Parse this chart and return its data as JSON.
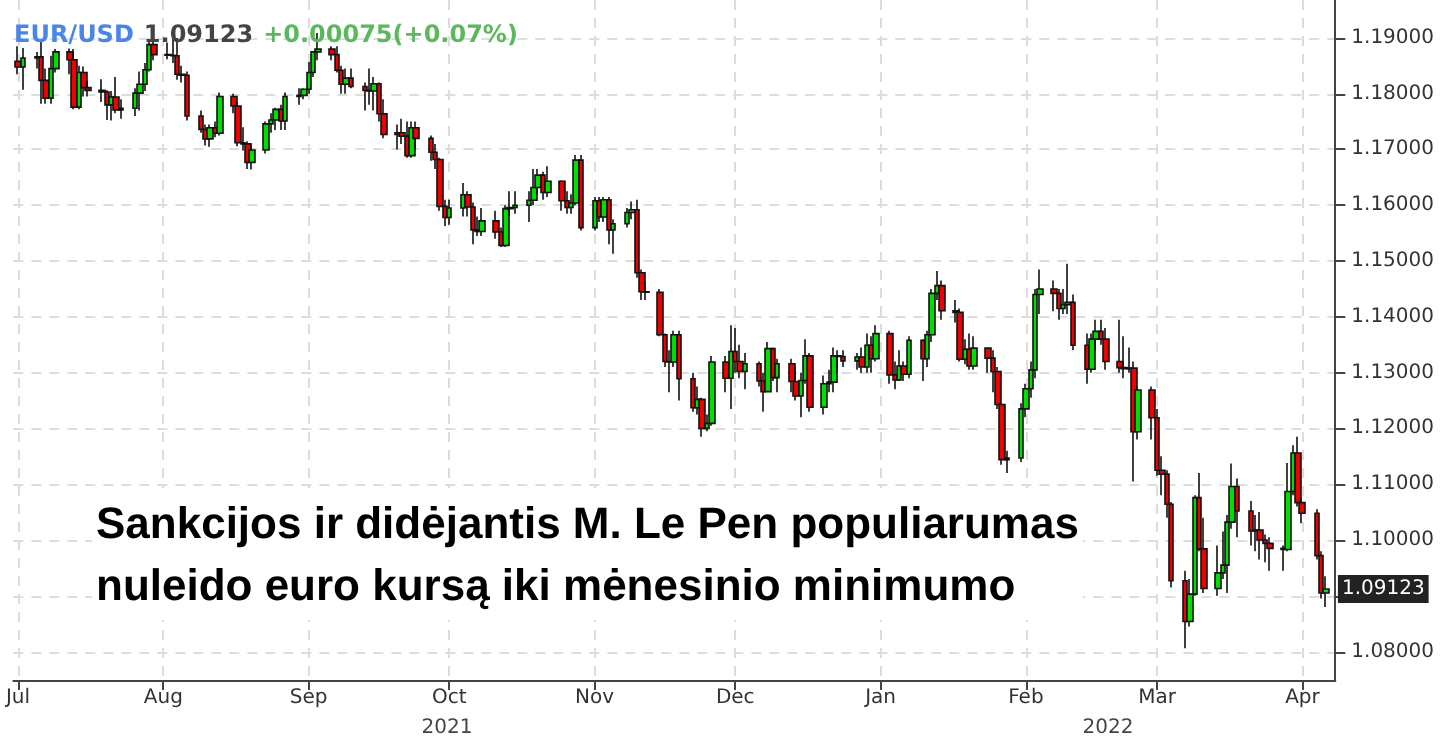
{
  "chart_data": {
    "type": "candlestick",
    "title": "EUR/USD",
    "subtitle": "1.09123",
    "annotations": [
      "+0.00075(+0.07%)",
      "Sankcijos ir didėjantis M. Le Pen populiarumas\nnuleido euro kursą iki mėnesinio minimumo",
      "2021",
      "2022",
      {
        "text": "1.09123",
        "x": "2022-04-06",
        "y": 1.09123
      }
    ],
    "colors": [
      "#ee0000",
      "#00dd00",
      "#00dd00",
      "#ee0000",
      "#ee0000",
      "#00dd00",
      "#00dd00",
      "#ee0000",
      "#ee0000",
      "#00dd00",
      "#ee0000",
      "#ee0000",
      "#ee0000",
      "#ee0000",
      "#00dd00",
      "#ee0000",
      "#00dd00",
      "#00dd00",
      "#00dd00",
      "#00dd00",
      "#00dd00",
      "#ee0000",
      "#ee0000",
      "#ee0000",
      "#ee0000",
      "#ee0000",
      "#ee0000",
      "#ee0000",
      "#ee0000",
      "#00dd00",
      "#ee0000",
      "#00dd00",
      "#ee0000",
      "#ee0000",
      "#ee0000",
      "#ee0000",
      "#00dd00",
      "#00dd00",
      "#00dd00",
      "#00dd00",
      "#ee0000",
      "#00dd00",
      "#00dd00",
      "#00dd00",
      "#00dd00",
      "#00dd00",
      "#00dd00",
      "#ee0000",
      "#ee0000",
      "#ee0000",
      "#00dd00",
      "#ee0000",
      "#ee0000",
      "#ee0000",
      "#00dd00",
      "#ee0000",
      "#ee0000",
      "#00dd00",
      "#ee0000",
      "#ee0000",
      "#00dd00",
      "#ee0000",
      "#ee0000",
      "#ee0000",
      "#ee0000",
      "#ee0000",
      "#00dd00",
      "#00dd00",
      "#ee0000",
      "#ee0000",
      "#ee0000",
      "#00dd00",
      "#ee0000",
      "#ee0000",
      "#00dd00",
      "#00dd00",
      "#00dd00",
      "#00dd00",
      "#00dd00",
      "#00dd00",
      "#ee0000",
      "#00dd00",
      "#ee0000",
      "#ee0000",
      "#00dd00",
      "#00dd00",
      "#ee0000",
      "#00dd00",
      "#ee0000",
      "#00dd00",
      "#ee0000",
      "#00dd00",
      "#00dd00",
      "#00dd00",
      "#ee0000",
      "#ee0000",
      "#ee0000",
      "#ee0000",
      "#ee0000",
      "#ee0000",
      "#00dd00",
      "#ee0000",
      "#ee0000",
      "#00dd00",
      "#ee0000",
      "#00dd00",
      "#00dd00",
      "#ee0000",
      "#00dd00",
      "#ee0000",
      "#ee0000",
      "#00dd00",
      "#ee0000",
      "#ee0000",
      "#00dd00",
      "#ee0000",
      "#00dd00",
      "#ee0000",
      "#ee0000",
      "#00dd00",
      "#00dd00",
      "#ee0000",
      "#00dd00",
      "#00dd00",
      "#00dd00",
      "#ee0000",
      "#ee0000",
      "#00dd00",
      "#ee0000",
      "#00dd00",
      "#ee0000",
      "#00dd00",
      "#ee0000",
      "#ee0000",
      "#00dd00",
      "#ee0000",
      "#00dd00",
      "#ee0000",
      "#00dd00",
      "#00dd00",
      "#00dd00",
      "#ee0000",
      "#ee0000",
      "#ee0000",
      "#00dd00",
      "#ee0000",
      "#00dd00",
      "#ee0000",
      "#ee0000",
      "#ee0000",
      "#ee0000",
      "#00dd00",
      "#00dd00",
      "#00dd00",
      "#00dd00",
      "#00dd00",
      "#00dd00",
      "#ee0000",
      "#ee0000",
      "#00dd00",
      "#00dd00",
      "#ee0000",
      "#ee0000",
      "#00dd00",
      "#00dd00",
      "#ee0000",
      "#ee0000",
      "#ee0000",
      "#ee0000",
      "#00dd00",
      "#ee0000",
      "#00dd00",
      "#ee0000",
      "#ee0000",
      "#ee0000",
      "#ee0000",
      "#ee0000",
      "#ee0000",
      "#00dd00",
      "#00dd00",
      "#ee0000",
      "#ee0000",
      "#00dd00",
      "#00dd00",
      "#00dd00",
      "#00dd00",
      "#ee0000",
      "#ee0000",
      "#00dd00",
      "#ee0000",
      "#ee0000",
      "#ee0000",
      "#ee0000",
      "#00dd00",
      "#00dd00",
      "#ee0000",
      "#ee0000",
      "#ee0000",
      "#ee0000",
      "#00dd00"
    ],
    "grid": true,
    "xlim": [
      "2021-06-30",
      "2022-04-08"
    ],
    "xticks": [
      {
        "value": "2021-07-01",
        "label": "Jul"
      },
      {
        "value": "2021-08-01",
        "label": "Aug"
      },
      {
        "value": "2021-09-01",
        "label": "Sep"
      },
      {
        "value": "2021-10-01",
        "label": "Oct"
      },
      {
        "value": "2021-11-01",
        "label": "Nov"
      },
      {
        "value": "2021-12-01",
        "label": "Dec"
      },
      {
        "value": "2022-01-01",
        "label": "Jan"
      },
      {
        "value": "2022-02-01",
        "label": "Feb"
      },
      {
        "value": "2022-03-01",
        "label": "Mar"
      },
      {
        "value": "2022-04-01",
        "label": "Apr"
      }
    ],
    "ylim": [
      1.0749,
      1.1968
    ],
    "yticks": [
      {
        "value": 1.08,
        "label": "1.08000"
      },
      {
        "value": 1.09,
        "label": null
      },
      {
        "value": 1.1,
        "label": "1.10000"
      },
      {
        "value": 1.11,
        "label": "1.11000"
      },
      {
        "value": 1.12,
        "label": "1.12000"
      },
      {
        "value": 1.13,
        "label": "1.13000"
      },
      {
        "value": 1.14,
        "label": "1.14000"
      },
      {
        "value": 1.15,
        "label": "1.15000"
      },
      {
        "value": 1.16,
        "label": "1.16000"
      },
      {
        "value": 1.17,
        "label": "1.17000"
      },
      {
        "value": 1.18,
        "label": "1.18000"
      },
      {
        "value": 1.19,
        "label": "1.19000"
      }
    ],
    "x": [
      "2021-07-01",
      "2021-07-02",
      "2021-07-05",
      "2021-07-06",
      "2021-07-07",
      "2021-07-08",
      "2021-07-09",
      "2021-07-12",
      "2021-07-13",
      "2021-07-14",
      "2021-07-15",
      "2021-07-16",
      "2021-07-19",
      "2021-07-20",
      "2021-07-21",
      "2021-07-22",
      "2021-07-23",
      "2021-07-26",
      "2021-07-27",
      "2021-07-28",
      "2021-07-29",
      "2021-07-30",
      "2021-08-02",
      "2021-08-03",
      "2021-08-04",
      "2021-08-05",
      "2021-08-06",
      "2021-08-09",
      "2021-08-10",
      "2021-08-11",
      "2021-08-12",
      "2021-08-13",
      "2021-08-16",
      "2021-08-17",
      "2021-08-18",
      "2021-08-19",
      "2021-08-20",
      "2021-08-23",
      "2021-08-24",
      "2021-08-25",
      "2021-08-26",
      "2021-08-27",
      "2021-08-30",
      "2021-08-31",
      "2021-09-01",
      "2021-09-02",
      "2021-09-03",
      "2021-09-06",
      "2021-09-07",
      "2021-09-08",
      "2021-09-09",
      "2021-09-10",
      "2021-09-13",
      "2021-09-14",
      "2021-09-15",
      "2021-09-16",
      "2021-09-17",
      "2021-09-20",
      "2021-09-21",
      "2021-09-22",
      "2021-09-23",
      "2021-09-24",
      "2021-09-27",
      "2021-09-28",
      "2021-09-29",
      "2021-09-30",
      "2021-10-01",
      "2021-10-04",
      "2021-10-05",
      "2021-10-06",
      "2021-10-07",
      "2021-10-08",
      "2021-10-11",
      "2021-10-12",
      "2021-10-13",
      "2021-10-14",
      "2021-10-15",
      "2021-10-18",
      "2021-10-19",
      "2021-10-20",
      "2021-10-21",
      "2021-10-22",
      "2021-10-25",
      "2021-10-26",
      "2021-10-27",
      "2021-10-28",
      "2021-10-29",
      "2021-11-01",
      "2021-11-02",
      "2021-11-03",
      "2021-11-04",
      "2021-11-05",
      "2021-11-08",
      "2021-11-09",
      "2021-11-10",
      "2021-11-11",
      "2021-11-12",
      "2021-11-15",
      "2021-11-16",
      "2021-11-17",
      "2021-11-18",
      "2021-11-19",
      "2021-11-22",
      "2021-11-23",
      "2021-11-24",
      "2021-11-25",
      "2021-11-26",
      "2021-11-29",
      "2021-11-30",
      "2021-12-01",
      "2021-12-02",
      "2021-12-03",
      "2021-12-06",
      "2021-12-07",
      "2021-12-08",
      "2021-12-09",
      "2021-12-10",
      "2021-12-13",
      "2021-12-14",
      "2021-12-15",
      "2021-12-16",
      "2021-12-17",
      "2021-12-20",
      "2021-12-21",
      "2021-12-22",
      "2021-12-23",
      "2021-12-24",
      "2021-12-27",
      "2021-12-28",
      "2021-12-29",
      "2021-12-30",
      "2021-12-31",
      "2022-01-03",
      "2022-01-04",
      "2022-01-05",
      "2022-01-06",
      "2022-01-07",
      "2022-01-10",
      "2022-01-11",
      "2022-01-12",
      "2022-01-13",
      "2022-01-14",
      "2022-01-17",
      "2022-01-18",
      "2022-01-19",
      "2022-01-20",
      "2022-01-21",
      "2022-01-24",
      "2022-01-25",
      "2022-01-26",
      "2022-01-27",
      "2022-01-28",
      "2022-01-31",
      "2022-02-01",
      "2022-02-02",
      "2022-02-03",
      "2022-02-04",
      "2022-02-07",
      "2022-02-08",
      "2022-02-09",
      "2022-02-10",
      "2022-02-11",
      "2022-02-14",
      "2022-02-15",
      "2022-02-16",
      "2022-02-17",
      "2022-02-18",
      "2022-02-21",
      "2022-02-22",
      "2022-02-23",
      "2022-02-24",
      "2022-02-25",
      "2022-02-28",
      "2022-03-01",
      "2022-03-02",
      "2022-03-03",
      "2022-03-04",
      "2022-03-07",
      "2022-03-08",
      "2022-03-09",
      "2022-03-10",
      "2022-03-11",
      "2022-03-14",
      "2022-03-15",
      "2022-03-16",
      "2022-03-17",
      "2022-03-18",
      "2022-03-21",
      "2022-03-22",
      "2022-03-23",
      "2022-03-24",
      "2022-03-25",
      "2022-03-28",
      "2022-03-29",
      "2022-03-30",
      "2022-03-31",
      "2022-04-01",
      "2022-04-04",
      "2022-04-05",
      "2022-04-06"
    ],
    "ohlc": [
      [
        1.1858,
        1.1885,
        1.1835,
        1.1848
      ],
      [
        1.1848,
        1.1882,
        1.1807,
        1.1864
      ],
      [
        1.1864,
        1.1875,
        1.1845,
        1.1866
      ],
      [
        1.1866,
        1.1895,
        1.1782,
        1.1824
      ],
      [
        1.1824,
        1.1845,
        1.1782,
        1.1792
      ],
      [
        1.1792,
        1.1868,
        1.1782,
        1.1845
      ],
      [
        1.1845,
        1.188,
        1.1838,
        1.1875
      ],
      [
        1.1875,
        1.1881,
        1.1835,
        1.1861
      ],
      [
        1.1861,
        1.188,
        1.1772,
        1.1776
      ],
      [
        1.1776,
        1.185,
        1.1772,
        1.1838
      ],
      [
        1.1838,
        1.1849,
        1.1795,
        1.1811
      ],
      [
        1.1811,
        1.1823,
        1.1795,
        1.1806
      ],
      [
        1.1806,
        1.1826,
        1.1785,
        1.1803
      ],
      [
        1.1803,
        1.1806,
        1.1753,
        1.178
      ],
      [
        1.178,
        1.1805,
        1.1752,
        1.1794
      ],
      [
        1.1794,
        1.183,
        1.1765,
        1.1771
      ],
      [
        1.1771,
        1.179,
        1.1755,
        1.1774
      ],
      [
        1.1774,
        1.181,
        1.176,
        1.1801
      ],
      [
        1.1801,
        1.184,
        1.177,
        1.1817
      ],
      [
        1.1817,
        1.1855,
        1.1805,
        1.1843
      ],
      [
        1.1843,
        1.1895,
        1.184,
        1.1888
      ],
      [
        1.1888,
        1.1908,
        1.186,
        1.187
      ],
      [
        1.187,
        1.1892,
        1.1862,
        1.1869
      ],
      [
        1.1869,
        1.1898,
        1.1855,
        1.1868
      ],
      [
        1.1868,
        1.19,
        1.1825,
        1.1835
      ],
      [
        1.1835,
        1.185,
        1.182,
        1.1833
      ],
      [
        1.1833,
        1.184,
        1.1752,
        1.176
      ],
      [
        1.176,
        1.177,
        1.173,
        1.1736
      ],
      [
        1.1736,
        1.1745,
        1.1707,
        1.1719
      ],
      [
        1.1719,
        1.1745,
        1.1705,
        1.1739
      ],
      [
        1.1739,
        1.175,
        1.1722,
        1.1729
      ],
      [
        1.1729,
        1.1802,
        1.1725,
        1.1795
      ],
      [
        1.1795,
        1.18,
        1.1765,
        1.1778
      ],
      [
        1.1778,
        1.1785,
        1.1706,
        1.1712
      ],
      [
        1.1712,
        1.174,
        1.1698,
        1.171
      ],
      [
        1.171,
        1.1715,
        1.1665,
        1.1677
      ],
      [
        1.1677,
        1.1708,
        1.1664,
        1.1699
      ],
      [
        1.1699,
        1.175,
        1.1693,
        1.1746
      ],
      [
        1.1746,
        1.1765,
        1.173,
        1.1753
      ],
      [
        1.1753,
        1.1775,
        1.1735,
        1.1772
      ],
      [
        1.1772,
        1.178,
        1.1735,
        1.1751
      ],
      [
        1.1751,
        1.1802,
        1.1735,
        1.1795
      ],
      [
        1.1795,
        1.181,
        1.178,
        1.1797
      ],
      [
        1.1797,
        1.181,
        1.179,
        1.1808
      ],
      [
        1.1808,
        1.1857,
        1.18,
        1.1838
      ],
      [
        1.1838,
        1.1876,
        1.183,
        1.1875
      ],
      [
        1.1875,
        1.1909,
        1.186,
        1.188
      ],
      [
        1.188,
        1.1885,
        1.186,
        1.187
      ],
      [
        1.187,
        1.1885,
        1.1838,
        1.1842
      ],
      [
        1.1842,
        1.185,
        1.18,
        1.1817
      ],
      [
        1.1817,
        1.1845,
        1.18,
        1.1828
      ],
      [
        1.1828,
        1.1845,
        1.181,
        1.1813
      ],
      [
        1.1813,
        1.182,
        1.177,
        1.1806
      ],
      [
        1.1806,
        1.1845,
        1.178,
        1.1805
      ],
      [
        1.1805,
        1.183,
        1.177,
        1.1818
      ],
      [
        1.1818,
        1.182,
        1.175,
        1.1764
      ],
      [
        1.1764,
        1.179,
        1.172,
        1.1727
      ],
      [
        1.1727,
        1.1745,
        1.17,
        1.173
      ],
      [
        1.173,
        1.1755,
        1.171,
        1.1724
      ],
      [
        1.1724,
        1.175,
        1.1685,
        1.1689
      ],
      [
        1.1689,
        1.175,
        1.1685,
        1.1739
      ],
      [
        1.1739,
        1.175,
        1.17,
        1.172
      ],
      [
        1.172,
        1.1725,
        1.168,
        1.1695
      ],
      [
        1.1695,
        1.171,
        1.1665,
        1.1682
      ],
      [
        1.1682,
        1.1685,
        1.159,
        1.1598
      ],
      [
        1.1598,
        1.161,
        1.1563,
        1.1578
      ],
      [
        1.1578,
        1.161,
        1.1565,
        1.1595
      ],
      [
        1.1595,
        1.164,
        1.158,
        1.1619
      ],
      [
        1.1619,
        1.1625,
        1.158,
        1.1597
      ],
      [
        1.1597,
        1.1605,
        1.153,
        1.1556
      ],
      [
        1.1556,
        1.158,
        1.1545,
        1.1553
      ],
      [
        1.1553,
        1.1595,
        1.1545,
        1.1572
      ],
      [
        1.1572,
        1.159,
        1.154,
        1.1552
      ],
      [
        1.1552,
        1.156,
        1.1525,
        1.1528
      ],
      [
        1.1528,
        1.16,
        1.1525,
        1.1594
      ],
      [
        1.1594,
        1.1625,
        1.158,
        1.1596
      ],
      [
        1.1596,
        1.1625,
        1.1585,
        1.16
      ],
      [
        1.16,
        1.1625,
        1.157,
        1.1609
      ],
      [
        1.1609,
        1.1665,
        1.16,
        1.1632
      ],
      [
        1.1632,
        1.1665,
        1.162,
        1.1654
      ],
      [
        1.1654,
        1.166,
        1.161,
        1.1623
      ],
      [
        1.1623,
        1.167,
        1.1615,
        1.1643
      ],
      [
        1.1643,
        1.1645,
        1.159,
        1.1608
      ],
      [
        1.1608,
        1.1625,
        1.1585,
        1.1596
      ],
      [
        1.1596,
        1.162,
        1.1585,
        1.1604
      ],
      [
        1.1604,
        1.169,
        1.16,
        1.1681
      ],
      [
        1.1681,
        1.169,
        1.1555,
        1.156
      ],
      [
        1.156,
        1.1615,
        1.1555,
        1.1608
      ],
      [
        1.1608,
        1.1615,
        1.157,
        1.1579
      ],
      [
        1.1579,
        1.1615,
        1.157,
        1.161
      ],
      [
        1.161,
        1.1615,
        1.153,
        1.1556
      ],
      [
        1.1556,
        1.1575,
        1.1513,
        1.1567
      ],
      [
        1.1567,
        1.1595,
        1.156,
        1.1587
      ],
      [
        1.1587,
        1.1607,
        1.1575,
        1.1592
      ],
      [
        1.1592,
        1.161,
        1.147,
        1.1479
      ],
      [
        1.1479,
        1.1485,
        1.143,
        1.1445
      ],
      [
        1.1445,
        1.1464,
        1.143,
        1.1444
      ],
      [
        1.1444,
        1.145,
        1.1365,
        1.1368
      ],
      [
        1.1368,
        1.137,
        1.131,
        1.132
      ],
      [
        1.132,
        1.134,
        1.1265,
        1.1319
      ],
      [
        1.1319,
        1.1375,
        1.131,
        1.1368
      ],
      [
        1.1368,
        1.1375,
        1.125,
        1.1289
      ],
      [
        1.1289,
        1.13,
        1.123,
        1.1237
      ],
      [
        1.1237,
        1.1275,
        1.1225,
        1.1252
      ],
      [
        1.1252,
        1.1255,
        1.1185,
        1.12
      ],
      [
        1.12,
        1.1225,
        1.1195,
        1.1209
      ],
      [
        1.1209,
        1.133,
        1.1205,
        1.1319
      ],
      [
        1.1319,
        1.133,
        1.1265,
        1.129
      ],
      [
        1.129,
        1.1385,
        1.1235,
        1.1338
      ],
      [
        1.1338,
        1.138,
        1.13,
        1.132
      ],
      [
        1.132,
        1.135,
        1.129,
        1.1302
      ],
      [
        1.1302,
        1.1335,
        1.127,
        1.1316
      ],
      [
        1.1316,
        1.132,
        1.1275,
        1.1285
      ],
      [
        1.1285,
        1.13,
        1.123,
        1.1266
      ],
      [
        1.1266,
        1.1355,
        1.1265,
        1.1343
      ],
      [
        1.1343,
        1.1345,
        1.1285,
        1.1291
      ],
      [
        1.1291,
        1.1325,
        1.1265,
        1.1316
      ],
      [
        1.1316,
        1.1325,
        1.1265,
        1.1284
      ],
      [
        1.1284,
        1.131,
        1.125,
        1.1258
      ],
      [
        1.1258,
        1.13,
        1.122,
        1.1286
      ],
      [
        1.1286,
        1.136,
        1.128,
        1.133
      ],
      [
        1.133,
        1.1335,
        1.123,
        1.1238
      ],
      [
        1.1238,
        1.1295,
        1.1225,
        1.128
      ],
      [
        1.128,
        1.1305,
        1.1265,
        1.1283
      ],
      [
        1.1283,
        1.1345,
        1.1265,
        1.133
      ],
      [
        1.133,
        1.134,
        1.13,
        1.1329
      ],
      [
        1.1329,
        1.134,
        1.131,
        1.1321
      ],
      [
        1.1321,
        1.1335,
        1.1305,
        1.1328
      ],
      [
        1.1328,
        1.1345,
        1.13,
        1.131
      ],
      [
        1.131,
        1.137,
        1.13,
        1.1349
      ],
      [
        1.1349,
        1.1365,
        1.13,
        1.1325
      ],
      [
        1.1325,
        1.1385,
        1.132,
        1.137
      ],
      [
        1.137,
        1.1375,
        1.128,
        1.1296
      ],
      [
        1.1296,
        1.132,
        1.127,
        1.1287
      ],
      [
        1.1287,
        1.134,
        1.1285,
        1.1312
      ],
      [
        1.1312,
        1.132,
        1.1285,
        1.1297
      ],
      [
        1.1297,
        1.1365,
        1.129,
        1.1358
      ],
      [
        1.1358,
        1.136,
        1.1285,
        1.1325
      ],
      [
        1.1325,
        1.1375,
        1.131,
        1.1368
      ],
      [
        1.1368,
        1.145,
        1.1355,
        1.1442
      ],
      [
        1.1442,
        1.1482,
        1.143,
        1.1456
      ],
      [
        1.1456,
        1.1465,
        1.1395,
        1.1411
      ],
      [
        1.1411,
        1.143,
        1.139,
        1.1408
      ],
      [
        1.1408,
        1.1415,
        1.132,
        1.1324
      ],
      [
        1.1324,
        1.136,
        1.1315,
        1.1342
      ],
      [
        1.1342,
        1.137,
        1.1305,
        1.1312
      ],
      [
        1.1312,
        1.1365,
        1.1305,
        1.1344
      ],
      [
        1.1344,
        1.1345,
        1.13,
        1.1326
      ],
      [
        1.1326,
        1.134,
        1.1265,
        1.1302
      ],
      [
        1.1302,
        1.131,
        1.1235,
        1.1243
      ],
      [
        1.1243,
        1.1245,
        1.1135,
        1.1144
      ],
      [
        1.1144,
        1.116,
        1.112,
        1.1147
      ],
      [
        1.1147,
        1.1245,
        1.114,
        1.1235
      ],
      [
        1.1235,
        1.128,
        1.122,
        1.1271
      ],
      [
        1.1271,
        1.132,
        1.1255,
        1.1305
      ],
      [
        1.1305,
        1.145,
        1.129,
        1.144
      ],
      [
        1.144,
        1.1485,
        1.1405,
        1.145
      ],
      [
        1.145,
        1.1465,
        1.141,
        1.1442
      ],
      [
        1.1442,
        1.145,
        1.1395,
        1.1415
      ],
      [
        1.1415,
        1.145,
        1.1405,
        1.1422
      ],
      [
        1.1422,
        1.1495,
        1.1405,
        1.1426
      ],
      [
        1.1426,
        1.144,
        1.134,
        1.1349
      ],
      [
        1.1349,
        1.137,
        1.128,
        1.1306
      ],
      [
        1.1306,
        1.137,
        1.13,
        1.136
      ],
      [
        1.136,
        1.1395,
        1.134,
        1.1374
      ],
      [
        1.1374,
        1.1395,
        1.135,
        1.136
      ],
      [
        1.136,
        1.138,
        1.1305,
        1.132
      ],
      [
        1.132,
        1.1395,
        1.13,
        1.1309
      ],
      [
        1.1309,
        1.1365,
        1.129,
        1.1307
      ],
      [
        1.1307,
        1.1345,
        1.13,
        1.1308
      ],
      [
        1.1308,
        1.132,
        1.1105,
        1.1194
      ],
      [
        1.1194,
        1.1275,
        1.118,
        1.1269
      ],
      [
        1.1269,
        1.1275,
        1.118,
        1.1219
      ],
      [
        1.1219,
        1.1235,
        1.1115,
        1.1125
      ],
      [
        1.1125,
        1.115,
        1.108,
        1.1118
      ],
      [
        1.1118,
        1.1125,
        1.104,
        1.1064
      ],
      [
        1.1064,
        1.1068,
        1.0915,
        1.0927
      ],
      [
        1.0927,
        1.0945,
        1.0806,
        1.0854
      ],
      [
        1.0854,
        1.093,
        1.0845,
        1.0903
      ],
      [
        1.0903,
        1.108,
        1.09,
        1.1076
      ],
      [
        1.1076,
        1.112,
        1.098,
        1.0984
      ],
      [
        1.0984,
        1.104,
        1.0905,
        1.0913
      ],
      [
        1.0913,
        1.099,
        1.09,
        1.0941
      ],
      [
        1.0941,
        1.1015,
        1.093,
        1.0955
      ],
      [
        1.0955,
        1.1045,
        1.0905,
        1.1032
      ],
      [
        1.1032,
        1.1137,
        1.102,
        1.1096
      ],
      [
        1.1096,
        1.111,
        1.1005,
        1.1052
      ],
      [
        1.1052,
        1.107,
        1.099,
        1.1016
      ],
      [
        1.1016,
        1.1045,
        1.098,
        1.1018
      ],
      [
        1.1018,
        1.105,
        1.0965,
        1.1
      ],
      [
        1.1,
        1.101,
        1.096,
        1.0994
      ],
      [
        1.0994,
        1.1005,
        1.0945,
        1.0985
      ],
      [
        1.0985,
        1.099,
        1.0945,
        1.0983
      ],
      [
        1.0983,
        1.1138,
        1.098,
        1.1087
      ],
      [
        1.1087,
        1.117,
        1.108,
        1.1156
      ],
      [
        1.1156,
        1.1185,
        1.106,
        1.1067
      ],
      [
        1.1067,
        1.1075,
        1.103,
        1.1048
      ],
      [
        1.1048,
        1.1055,
        1.0965,
        1.0972
      ],
      [
        1.0972,
        1.098,
        1.0895,
        1.0905
      ],
      [
        1.0905,
        1.0935,
        1.088,
        1.0912
      ]
    ]
  }
}
